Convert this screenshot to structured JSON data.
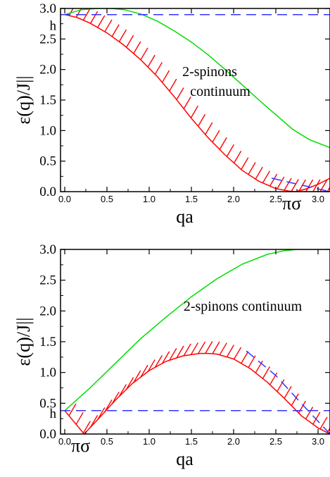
{
  "chart_data": [
    {
      "type": "line",
      "xlabel": "qa",
      "ylabel": "ε(q)/J||",
      "xlim": [
        -0.05,
        3.1416
      ],
      "ylim": [
        0.0,
        3.0
      ],
      "xticks": [
        "0.0",
        "0.5",
        "1.0",
        "1.5",
        "2.0",
        "2.5",
        "3.0"
      ],
      "yticks": [
        "0.0",
        "0.5",
        "1.0",
        "1.5",
        "2.0",
        "2.5",
        "3.0"
      ],
      "h_label": "h",
      "h_value": 2.9,
      "piSigma_label": "πσ",
      "piSigma_value": 2.73,
      "annotation_lines": [
        "2-spinons",
        "continuum"
      ],
      "grid": false,
      "series": [
        {
          "color": "#00dd00",
          "x": [
            0.0,
            0.2,
            0.4,
            0.55,
            0.7,
            0.9,
            1.1,
            1.3,
            1.5,
            1.7,
            1.9,
            2.1,
            2.3,
            2.5,
            2.7,
            2.9,
            3.1416
          ],
          "y": [
            2.9,
            2.98,
            3.0,
            3.0,
            2.98,
            2.91,
            2.79,
            2.63,
            2.45,
            2.24,
            2.0,
            1.75,
            1.5,
            1.26,
            1.02,
            0.85,
            0.72
          ]
        },
        {
          "color": "#ff0000",
          "x": [
            0.0,
            0.15,
            0.3,
            0.5,
            0.7,
            0.9,
            1.1,
            1.3,
            1.5,
            1.7,
            1.9,
            2.1,
            2.3,
            2.5,
            2.65,
            2.73,
            2.85,
            3.0,
            3.1416
          ],
          "y": [
            2.9,
            2.85,
            2.76,
            2.6,
            2.4,
            2.16,
            1.88,
            1.55,
            1.2,
            0.88,
            0.6,
            0.35,
            0.17,
            0.05,
            0.01,
            0.0,
            0.0,
            0.0,
            0.0
          ]
        },
        {
          "color": "#ff0000",
          "x": [
            2.73,
            2.85,
            3.0,
            3.1416
          ],
          "y": [
            0.0,
            0.04,
            0.12,
            0.22
          ]
        },
        {
          "color": "#3333ff",
          "x": [
            -0.05,
            3.1416
          ],
          "y": [
            2.9,
            2.9
          ]
        },
        {
          "color": "#3333ff",
          "x": [
            2.45,
            3.1416
          ],
          "y": [
            0.22,
            0.0
          ]
        }
      ]
    },
    {
      "type": "line",
      "xlabel": "qa",
      "ylabel": "ε(q)/J||",
      "xlim": [
        -0.05,
        3.1416
      ],
      "ylim": [
        0.0,
        3.0
      ],
      "xticks": [
        "0.0",
        "0.5",
        "1.0",
        "1.5",
        "2.0",
        "2.5",
        "3.0"
      ],
      "yticks": [
        "0.0",
        "0.5",
        "1.0",
        "1.5",
        "2.0",
        "2.5",
        "3.0"
      ],
      "h_label": "h",
      "h_value": 0.38,
      "piSigma_label": "πσ",
      "piSigma_value": 0.23,
      "annotation": "2-spinons continuum",
      "grid": false,
      "series": [
        {
          "color": "#00dd00",
          "x": [
            0.0,
            0.3,
            0.6,
            0.9,
            1.2,
            1.5,
            1.8,
            2.1,
            2.4,
            2.6,
            2.75,
            2.9,
            3.1416
          ],
          "y": [
            0.38,
            0.75,
            1.15,
            1.55,
            1.9,
            2.23,
            2.52,
            2.76,
            2.92,
            2.98,
            3.0,
            3.0,
            3.0
          ]
        },
        {
          "color": "#ff0000",
          "x": [
            0.0,
            0.23,
            0.4,
            0.6,
            0.8,
            1.0,
            1.2,
            1.4,
            1.6,
            1.7,
            1.8,
            2.0,
            2.2,
            2.4,
            2.6,
            2.8,
            3.0,
            3.1416
          ],
          "y": [
            0.38,
            0.0,
            0.25,
            0.55,
            0.82,
            1.03,
            1.18,
            1.27,
            1.31,
            1.31,
            1.3,
            1.22,
            1.06,
            0.84,
            0.58,
            0.3,
            0.1,
            0.0
          ]
        },
        {
          "color": "#3333ff",
          "x": [
            -0.05,
            3.1416
          ],
          "y": [
            0.38,
            0.38
          ]
        },
        {
          "color": "#3333ff",
          "x": [
            2.15,
            2.5,
            2.8,
            3.1416
          ],
          "y": [
            1.35,
            0.95,
            0.5,
            0.0
          ]
        }
      ]
    }
  ]
}
